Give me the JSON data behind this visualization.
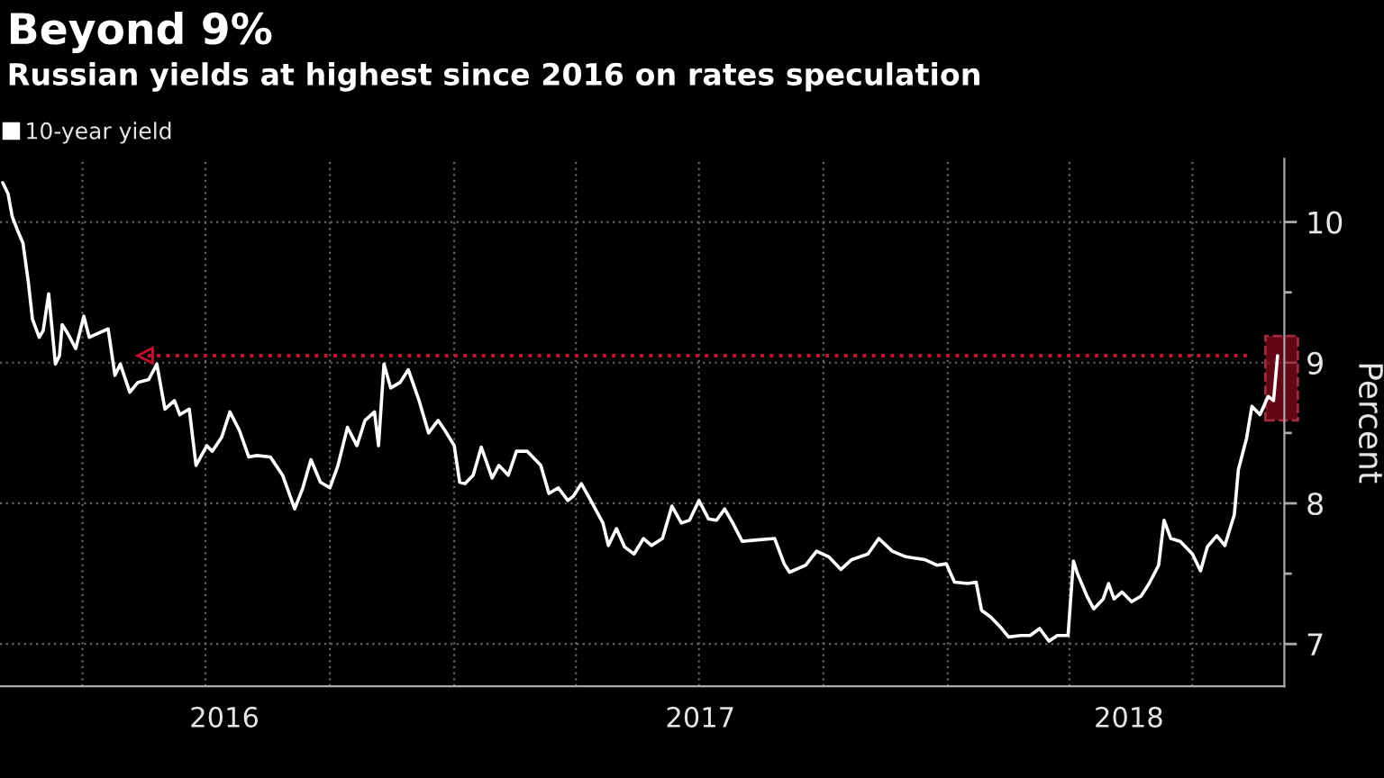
{
  "chart_data": {
    "type": "line",
    "title": "Beyond 9%",
    "subtitle": "Russian yields at highest since 2016 on rates speculation",
    "ylabel": "Percent",
    "x": [
      "2016-02-02",
      "2016-02-06",
      "2016-02-09",
      "2016-02-13",
      "2016-02-17",
      "2016-02-21",
      "2016-02-24",
      "2016-02-29",
      "2016-03-03",
      "2016-03-07",
      "2016-03-12",
      "2016-03-15",
      "2016-03-17",
      "2016-03-21",
      "2016-03-27",
      "2016-04-02",
      "2016-04-06",
      "2016-04-13",
      "2016-04-20",
      "2016-04-25",
      "2016-04-29",
      "2016-05-06",
      "2016-05-12",
      "2016-05-20",
      "2016-05-26",
      "2016-06-01",
      "2016-06-08",
      "2016-06-12",
      "2016-06-19",
      "2016-06-24",
      "2016-07-02",
      "2016-07-06",
      "2016-07-13",
      "2016-07-19",
      "2016-07-26",
      "2016-08-02",
      "2016-08-08",
      "2016-08-18",
      "2016-08-27",
      "2016-09-05",
      "2016-09-11",
      "2016-09-17",
      "2016-09-24",
      "2016-10-01",
      "2016-10-07",
      "2016-10-14",
      "2016-10-21",
      "2016-10-27",
      "2016-11-03",
      "2016-11-06",
      "2016-11-10",
      "2016-11-15",
      "2016-11-22",
      "2016-11-28",
      "2016-12-06",
      "2016-12-13",
      "2016-12-20",
      "2016-12-25",
      "2017-01-01",
      "2017-01-05",
      "2017-01-09",
      "2017-01-15",
      "2017-01-21",
      "2017-01-29",
      "2017-02-03",
      "2017-02-10",
      "2017-02-16",
      "2017-02-24",
      "2017-03-06",
      "2017-03-12",
      "2017-03-19",
      "2017-03-26",
      "2017-03-30",
      "2017-04-05",
      "2017-04-12",
      "2017-04-21",
      "2017-04-25",
      "2017-05-01",
      "2017-05-07",
      "2017-05-14",
      "2017-05-21",
      "2017-05-27",
      "2017-06-04",
      "2017-06-11",
      "2017-06-18",
      "2017-06-24",
      "2017-07-01",
      "2017-07-08",
      "2017-07-14",
      "2017-07-20",
      "2017-07-26",
      "2017-08-02",
      "2017-08-13",
      "2017-08-26",
      "2017-09-02",
      "2017-09-06",
      "2017-09-18",
      "2017-09-26",
      "2017-10-05",
      "2017-10-14",
      "2017-10-22",
      "2017-11-03",
      "2017-11-11",
      "2017-11-21",
      "2017-12-01",
      "2017-12-15",
      "2017-12-24",
      "2017-12-31",
      "2018-01-06",
      "2018-01-16",
      "2018-01-22",
      "2018-01-26",
      "2018-02-02",
      "2018-02-09",
      "2018-02-15",
      "2018-02-24",
      "2018-03-03",
      "2018-03-10",
      "2018-03-17",
      "2018-03-23",
      "2018-03-31",
      "2018-04-04",
      "2018-04-07",
      "2018-04-14",
      "2018-04-19",
      "2018-04-26",
      "2018-04-30",
      "2018-05-04",
      "2018-05-10",
      "2018-05-17",
      "2018-05-24",
      "2018-05-30",
      "2018-06-06",
      "2018-06-10",
      "2018-06-15",
      "2018-06-22",
      "2018-07-01",
      "2018-07-07",
      "2018-07-12",
      "2018-07-19",
      "2018-07-25",
      "2018-08-01",
      "2018-08-04",
      "2018-08-10",
      "2018-08-14",
      "2018-08-20",
      "2018-08-26",
      "2018-08-30",
      "2018-09-02"
    ],
    "series": [
      {
        "name": "10-year yield",
        "color": "#ffffff",
        "values": [
          10.28,
          10.2,
          10.04,
          9.94,
          9.85,
          9.57,
          9.31,
          9.18,
          9.23,
          9.49,
          8.99,
          9.05,
          9.27,
          9.21,
          9.1,
          9.33,
          9.18,
          9.21,
          9.24,
          8.91,
          8.99,
          8.79,
          8.86,
          8.88,
          8.99,
          8.67,
          8.73,
          8.63,
          8.67,
          8.27,
          8.41,
          8.37,
          8.47,
          8.65,
          8.52,
          8.33,
          8.34,
          8.33,
          8.2,
          7.96,
          8.11,
          8.31,
          8.15,
          8.11,
          8.27,
          8.54,
          8.41,
          8.59,
          8.65,
          8.41,
          8.99,
          8.82,
          8.86,
          8.95,
          8.73,
          8.5,
          8.59,
          8.52,
          8.41,
          8.15,
          8.14,
          8.2,
          8.4,
          8.18,
          8.27,
          8.2,
          8.37,
          8.37,
          8.27,
          8.07,
          8.11,
          8.02,
          8.05,
          8.14,
          8.02,
          7.86,
          7.7,
          7.82,
          7.69,
          7.64,
          7.75,
          7.7,
          7.75,
          7.98,
          7.86,
          7.88,
          8.02,
          7.89,
          7.88,
          7.96,
          7.86,
          7.73,
          7.74,
          7.75,
          7.57,
          7.51,
          7.56,
          7.66,
          7.62,
          7.53,
          7.6,
          7.64,
          7.75,
          7.66,
          7.62,
          7.6,
          7.56,
          7.57,
          7.44,
          7.43,
          7.44,
          7.24,
          7.19,
          7.12,
          7.05,
          7.06,
          7.06,
          7.11,
          7.02,
          7.06,
          7.06,
          7.59,
          7.5,
          7.34,
          7.25,
          7.32,
          7.43,
          7.32,
          7.37,
          7.3,
          7.34,
          7.43,
          7.56,
          7.88,
          7.75,
          7.73,
          7.64,
          7.52,
          7.69,
          7.77,
          7.7,
          7.92,
          8.24,
          8.46,
          8.69,
          8.63,
          8.76,
          8.73,
          9.05
        ]
      }
    ],
    "xlim": [
      "2016-01-31",
      "2018-09-07"
    ],
    "xticks": [
      {
        "value": "2016-04-01",
        "label": null
      },
      {
        "value": "2016-07-01",
        "label": null
      },
      {
        "value": "2016-10-01",
        "label": null
      },
      {
        "value": "2017-01-01",
        "label": null
      },
      {
        "value": "2017-04-01",
        "label": null
      },
      {
        "value": "2017-07-01",
        "label": null
      },
      {
        "value": "2017-10-01",
        "label": null
      },
      {
        "value": "2018-01-01",
        "label": null
      },
      {
        "value": "2018-04-01",
        "label": null
      },
      {
        "value": "2018-07-01",
        "label": null
      },
      {
        "value": "2016-07-15",
        "label": "2016"
      },
      {
        "value": "2017-07-02",
        "label": "2017"
      },
      {
        "value": "2018-05-15",
        "label": "2018"
      }
    ],
    "ylim": [
      6.7,
      10.45
    ],
    "yticks": [
      7,
      8,
      9,
      10,
      {
        "value": 7.5,
        "label": null
      },
      {
        "value": 8.5,
        "label": null
      },
      {
        "value": 9.5,
        "label": null
      }
    ],
    "ref_lines": [
      {
        "axis": "y",
        "value": 9.05,
        "color": "#c8102e",
        "line_style": "dotted"
      }
    ],
    "grid": true,
    "legend": "top left",
    "marker": "none",
    "line_style": "solid"
  }
}
